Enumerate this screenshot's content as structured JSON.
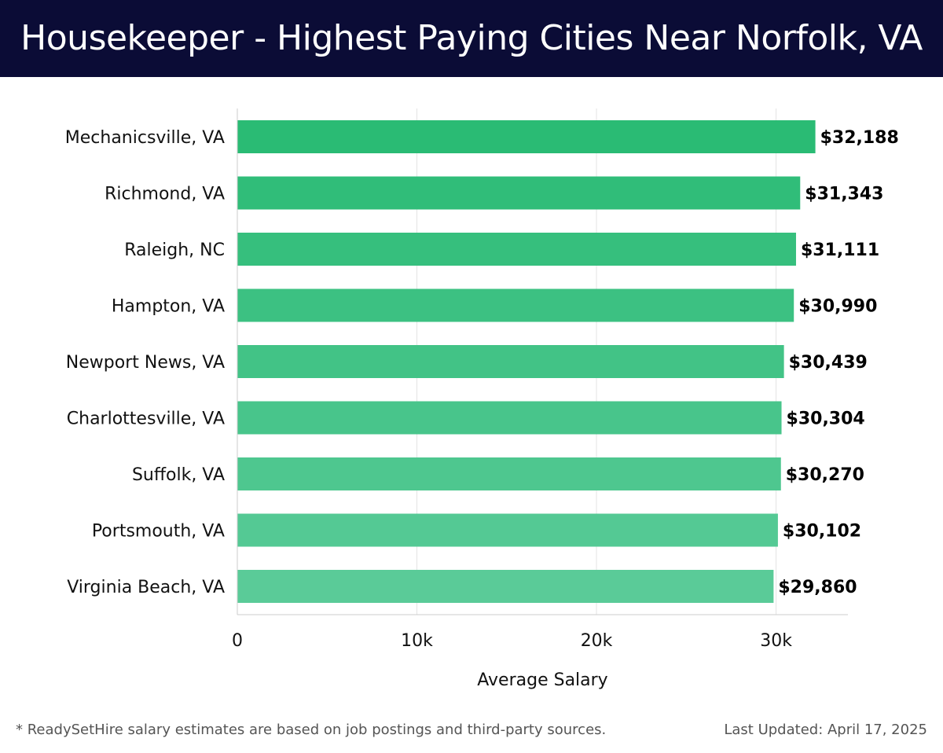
{
  "chart_data": {
    "type": "bar",
    "orientation": "horizontal",
    "title": "Housekeeper - Highest Paying Cities Near Norfolk, VA",
    "xlabel": "Average Salary",
    "ylabel": "",
    "categories": [
      "Mechanicsville, VA",
      "Richmond, VA",
      "Raleigh, NC",
      "Hampton, VA",
      "Newport News, VA",
      "Charlottesville, VA",
      "Suffolk, VA",
      "Portsmouth, VA",
      "Virginia Beach, VA"
    ],
    "values": [
      32188,
      31343,
      31111,
      30990,
      30439,
      30304,
      30270,
      30102,
      29860
    ],
    "value_labels": [
      "$32,188",
      "$31,343",
      "$31,111",
      "$30,990",
      "$30,439",
      "$30,304",
      "$30,270",
      "$30,102",
      "$29,860"
    ],
    "xlim": [
      0,
      34000
    ],
    "xticks": [
      0,
      10000,
      20000,
      30000
    ],
    "xtick_labels": [
      "0",
      "10k",
      "20k",
      "30k"
    ],
    "grid": "vertical",
    "legend": "none",
    "colors": {
      "bar_top": "#2abb74",
      "bar_bottom": "#5acb98",
      "header_bg": "#0b0c36"
    }
  },
  "footer": {
    "note": "* ReadySetHire salary estimates are based on job postings and third-party sources.",
    "updated": "Last Updated: April 17, 2025"
  }
}
